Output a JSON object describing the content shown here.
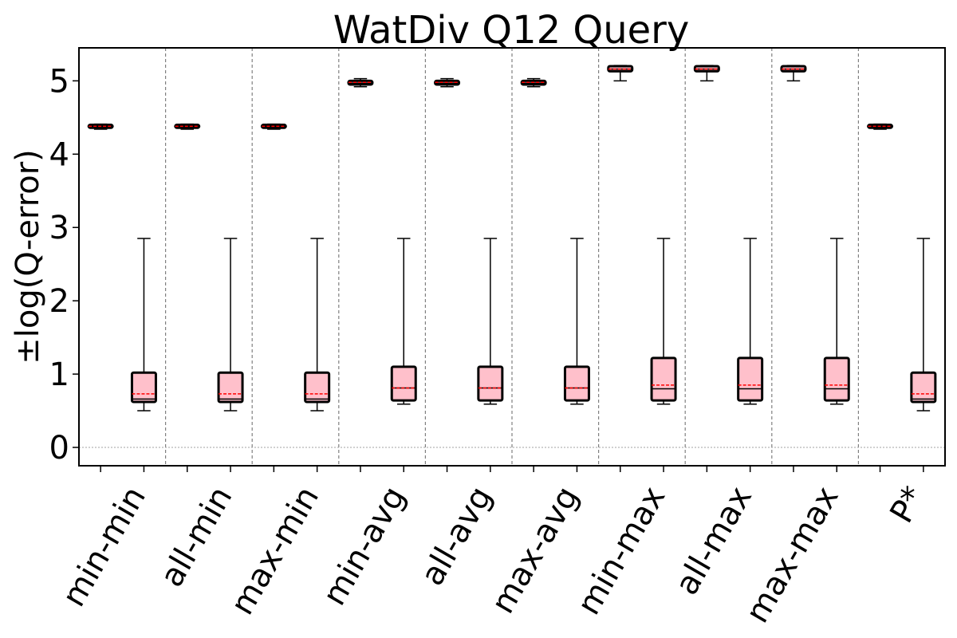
{
  "chart_data": {
    "type": "box",
    "title": "WatDiv Q12 Query",
    "xlabel": "",
    "ylabel": "±log(Q-error)",
    "ylim": [
      -0.25,
      5.45
    ],
    "yticks": [
      0,
      1,
      2,
      3,
      4,
      5
    ],
    "grid": false,
    "zero_line": true,
    "categories": [
      "min-min",
      "all-min",
      "max-min",
      "min-avg",
      "all-avg",
      "max-avg",
      "min-max",
      "all-max",
      "max-max",
      "P*"
    ],
    "series": [
      {
        "boxes": [
          {
            "whislo": 4.34,
            "q1": 4.36,
            "med": 4.38,
            "mean": 4.38,
            "q3": 4.4,
            "whishi": 4.41
          },
          {
            "whislo": 4.34,
            "q1": 4.36,
            "med": 4.38,
            "mean": 4.38,
            "q3": 4.4,
            "whishi": 4.41
          },
          {
            "whislo": 4.34,
            "q1": 4.36,
            "med": 4.38,
            "mean": 4.38,
            "q3": 4.4,
            "whishi": 4.41
          },
          {
            "whislo": 4.92,
            "q1": 4.95,
            "med": 4.97,
            "mean": 4.98,
            "q3": 5.0,
            "whishi": 5.03
          },
          {
            "whislo": 4.92,
            "q1": 4.95,
            "med": 4.97,
            "mean": 4.98,
            "q3": 5.0,
            "whishi": 5.03
          },
          {
            "whislo": 4.92,
            "q1": 4.95,
            "med": 4.97,
            "mean": 4.98,
            "q3": 5.0,
            "whishi": 5.03
          },
          {
            "whislo": 5.0,
            "q1": 5.13,
            "med": 5.16,
            "mean": 5.16,
            "q3": 5.2,
            "whishi": 5.21
          },
          {
            "whislo": 5.0,
            "q1": 5.13,
            "med": 5.16,
            "mean": 5.16,
            "q3": 5.2,
            "whishi": 5.21
          },
          {
            "whislo": 5.0,
            "q1": 5.13,
            "med": 5.16,
            "mean": 5.16,
            "q3": 5.2,
            "whishi": 5.21
          },
          {
            "whislo": 4.34,
            "q1": 4.36,
            "med": 4.38,
            "mean": 4.38,
            "q3": 4.4,
            "whishi": 4.41
          }
        ]
      },
      {
        "boxes": [
          {
            "whislo": 0.5,
            "q1": 0.62,
            "med": 0.66,
            "mean": 0.73,
            "q3": 1.02,
            "whishi": 2.85
          },
          {
            "whislo": 0.5,
            "q1": 0.62,
            "med": 0.66,
            "mean": 0.73,
            "q3": 1.02,
            "whishi": 2.85
          },
          {
            "whislo": 0.5,
            "q1": 0.62,
            "med": 0.66,
            "mean": 0.73,
            "q3": 1.02,
            "whishi": 2.85
          },
          {
            "whislo": 0.59,
            "q1": 0.64,
            "med": 0.81,
            "mean": 0.81,
            "q3": 1.1,
            "whishi": 2.85
          },
          {
            "whislo": 0.59,
            "q1": 0.64,
            "med": 0.81,
            "mean": 0.81,
            "q3": 1.1,
            "whishi": 2.85
          },
          {
            "whislo": 0.59,
            "q1": 0.64,
            "med": 0.81,
            "mean": 0.81,
            "q3": 1.1,
            "whishi": 2.85
          },
          {
            "whislo": 0.59,
            "q1": 0.64,
            "med": 0.8,
            "mean": 0.85,
            "q3": 1.22,
            "whishi": 2.85
          },
          {
            "whislo": 0.59,
            "q1": 0.64,
            "med": 0.8,
            "mean": 0.85,
            "q3": 1.22,
            "whishi": 2.85
          },
          {
            "whislo": 0.59,
            "q1": 0.64,
            "med": 0.8,
            "mean": 0.85,
            "q3": 1.22,
            "whishi": 2.85
          },
          {
            "whislo": 0.5,
            "q1": 0.62,
            "med": 0.66,
            "mean": 0.73,
            "q3": 1.02,
            "whishi": 2.85
          }
        ]
      }
    ],
    "colors": {
      "box_fill": "#ffc0cb",
      "box_edge": "#000000",
      "median": "#000000",
      "mean": "#ff0000",
      "divider": "#808080",
      "zero_line": "#a0a0a0"
    }
  }
}
